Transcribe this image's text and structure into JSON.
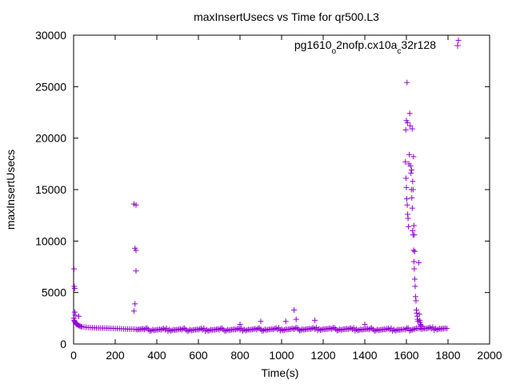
{
  "chart_data": {
    "type": "scatter",
    "title": "maxInsertUsecs vs Time for qr500.L3",
    "xlabel": "Time(s)",
    "ylabel": "maxInsertUsecs",
    "xlim": [
      0,
      2000
    ],
    "ylim": [
      0,
      30000
    ],
    "xticks": [
      0,
      200,
      400,
      600,
      800,
      1000,
      1200,
      1400,
      1600,
      1800,
      2000
    ],
    "yticks": [
      0,
      5000,
      10000,
      15000,
      20000,
      25000,
      30000
    ],
    "grid": false,
    "legend_position": "top-right",
    "marker": "+",
    "color": "#9400d3",
    "legend": {
      "parts": [
        {
          "text": "pg1610",
          "sub": false
        },
        {
          "text": "o",
          "sub": true
        },
        {
          "text": "2nofp.cx10a",
          "sub": false
        },
        {
          "text": "c",
          "sub": true
        },
        {
          "text": "32r128",
          "sub": false
        }
      ]
    },
    "series": [
      {
        "name": "pg1610_o2nofp.cx10a_c32r128",
        "baseline": [
          [
            1,
            2500
          ],
          [
            3,
            2300
          ],
          [
            5,
            2200
          ],
          [
            8,
            2100
          ],
          [
            10,
            2000
          ],
          [
            13,
            1950
          ],
          [
            16,
            1900
          ],
          [
            20,
            1850
          ],
          [
            25,
            1800
          ],
          [
            30,
            1750
          ],
          [
            35,
            1700
          ],
          [
            40,
            1680
          ],
          [
            50,
            1650
          ],
          [
            60,
            1620
          ],
          [
            70,
            1600
          ],
          [
            80,
            1600
          ],
          [
            90,
            1580
          ],
          [
            100,
            1580
          ],
          [
            110,
            1560
          ],
          [
            120,
            1560
          ],
          [
            130,
            1550
          ],
          [
            140,
            1550
          ],
          [
            150,
            1540
          ],
          [
            160,
            1540
          ],
          [
            170,
            1530
          ],
          [
            180,
            1520
          ],
          [
            190,
            1520
          ],
          [
            200,
            1500
          ],
          [
            210,
            1500
          ],
          [
            220,
            1490
          ],
          [
            230,
            1480
          ],
          [
            240,
            1470
          ],
          [
            250,
            1460
          ],
          [
            260,
            1450
          ],
          [
            270,
            1450
          ],
          [
            280,
            1440
          ],
          [
            290,
            1440
          ],
          [
            300,
            1430
          ],
          [
            320,
            1420
          ],
          [
            340,
            1410
          ],
          [
            360,
            1400
          ],
          [
            380,
            1400
          ],
          [
            400,
            1390
          ],
          [
            420,
            1390
          ],
          [
            440,
            1390
          ],
          [
            460,
            1390
          ],
          [
            480,
            1390
          ],
          [
            500,
            1390
          ],
          [
            520,
            1390
          ],
          [
            540,
            1390
          ],
          [
            560,
            1390
          ],
          [
            580,
            1390
          ],
          [
            600,
            1390
          ],
          [
            620,
            1390
          ],
          [
            640,
            1390
          ],
          [
            660,
            1390
          ],
          [
            680,
            1390
          ],
          [
            700,
            1390
          ],
          [
            720,
            1400
          ],
          [
            740,
            1400
          ],
          [
            760,
            1400
          ],
          [
            780,
            1400
          ],
          [
            800,
            1400
          ],
          [
            820,
            1410
          ],
          [
            840,
            1410
          ],
          [
            860,
            1410
          ],
          [
            880,
            1410
          ],
          [
            900,
            1420
          ],
          [
            920,
            1420
          ],
          [
            940,
            1420
          ],
          [
            960,
            1420
          ],
          [
            980,
            1430
          ],
          [
            1000,
            1430
          ],
          [
            1020,
            1430
          ],
          [
            1040,
            1440
          ],
          [
            1060,
            1440
          ],
          [
            1080,
            1440
          ],
          [
            1100,
            1450
          ],
          [
            1120,
            1450
          ],
          [
            1140,
            1450
          ],
          [
            1160,
            1460
          ],
          [
            1180,
            1460
          ],
          [
            1200,
            1460
          ],
          [
            1220,
            1460
          ],
          [
            1240,
            1450
          ],
          [
            1260,
            1450
          ],
          [
            1280,
            1440
          ],
          [
            1300,
            1440
          ],
          [
            1320,
            1440
          ],
          [
            1340,
            1430
          ],
          [
            1360,
            1430
          ],
          [
            1380,
            1420
          ],
          [
            1400,
            1420
          ],
          [
            1420,
            1410
          ],
          [
            1440,
            1410
          ],
          [
            1460,
            1410
          ],
          [
            1480,
            1400
          ],
          [
            1500,
            1400
          ],
          [
            1520,
            1400
          ],
          [
            1540,
            1400
          ],
          [
            1560,
            1400
          ],
          [
            1580,
            1400
          ],
          [
            1595,
            1400
          ],
          [
            1655,
            1500
          ],
          [
            1665,
            1500
          ],
          [
            1680,
            1500
          ],
          [
            1700,
            1500
          ],
          [
            1720,
            1500
          ],
          [
            1740,
            1500
          ],
          [
            1760,
            1500
          ],
          [
            1780,
            1500
          ],
          [
            1795,
            1500
          ]
        ],
        "outliers": [
          [
            2,
            7300
          ],
          [
            3,
            5600
          ],
          [
            5,
            5400
          ],
          [
            6,
            3100
          ],
          [
            8,
            2800
          ],
          [
            25,
            2700
          ],
          [
            290,
            13600
          ],
          [
            300,
            13500
          ],
          [
            295,
            9300
          ],
          [
            300,
            9100
          ],
          [
            300,
            7100
          ],
          [
            295,
            3900
          ],
          [
            290,
            3200
          ],
          [
            800,
            1900
          ],
          [
            900,
            2200
          ],
          [
            1020,
            2200
          ],
          [
            1060,
            3300
          ],
          [
            1070,
            2400
          ],
          [
            1160,
            2300
          ],
          [
            1400,
            1900
          ],
          [
            1595,
            17700
          ],
          [
            1597,
            20800
          ],
          [
            1600,
            21700
          ],
          [
            1603,
            25400
          ],
          [
            1605,
            21500
          ],
          [
            1598,
            16100
          ],
          [
            1600,
            15200
          ],
          [
            1602,
            14100
          ],
          [
            1604,
            13500
          ],
          [
            1606,
            12600
          ],
          [
            1608,
            12200
          ],
          [
            1610,
            11400
          ],
          [
            1612,
            17500
          ],
          [
            1614,
            18400
          ],
          [
            1616,
            22400
          ],
          [
            1618,
            21200
          ],
          [
            1620,
            17300
          ],
          [
            1622,
            16600
          ],
          [
            1624,
            15000
          ],
          [
            1626,
            14200
          ],
          [
            1628,
            13200
          ],
          [
            1630,
            11000
          ],
          [
            1632,
            10600
          ],
          [
            1634,
            9100
          ],
          [
            1636,
            8000
          ],
          [
            1638,
            7300
          ],
          [
            1640,
            6300
          ],
          [
            1642,
            5600
          ],
          [
            1644,
            4600
          ],
          [
            1646,
            4200
          ],
          [
            1648,
            3300
          ],
          [
            1650,
            3000
          ],
          [
            1652,
            2700
          ],
          [
            1654,
            2400
          ],
          [
            1656,
            2200
          ],
          [
            1625,
            16900
          ],
          [
            1630,
            15800
          ],
          [
            1632,
            15000
          ],
          [
            1628,
            20900
          ],
          [
            1634,
            18200
          ],
          [
            1636,
            11500
          ],
          [
            1638,
            10600
          ],
          [
            1640,
            9000
          ],
          [
            1660,
            7900
          ],
          [
            1662,
            2900
          ],
          [
            1664,
            2300
          ],
          [
            1666,
            2100
          ],
          [
            1668,
            1900
          ],
          [
            1670,
            1800
          ],
          [
            1672,
            1700
          ],
          [
            1850,
            29500
          ]
        ]
      }
    ]
  }
}
